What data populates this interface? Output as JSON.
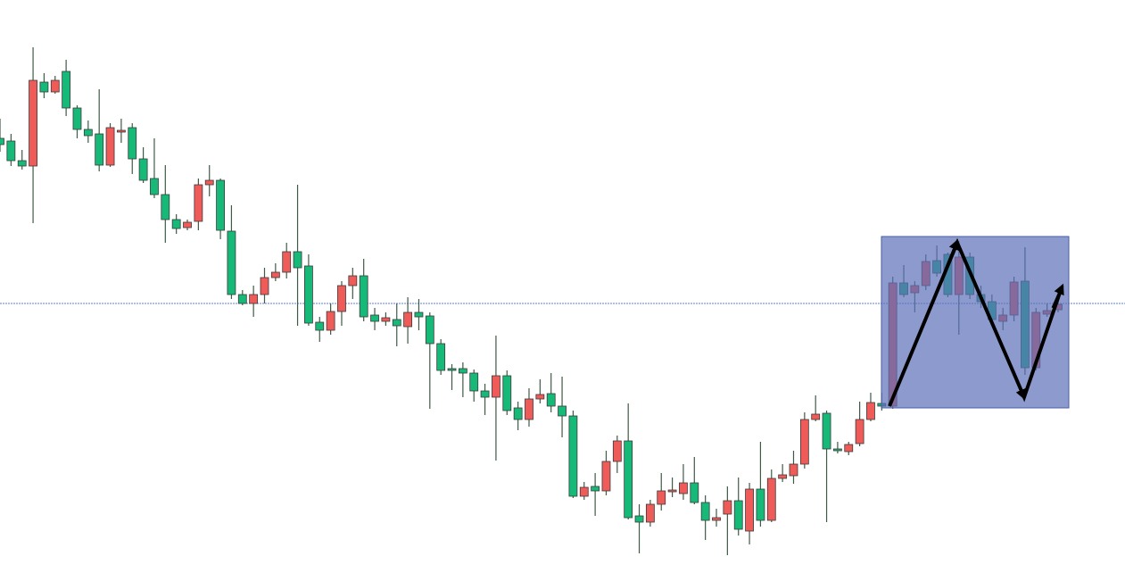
{
  "chart_data": {
    "type": "candlestick",
    "ylim": [
      0,
      642
    ],
    "up_color": "#ee5b58",
    "down_color": "#17b978",
    "wick_color": "#3f5a46",
    "hline": {
      "value": 302,
      "color": "#5b7fe0"
    },
    "open": [
      487,
      484,
      462,
      456,
      550,
      539,
      562,
      521,
      497,
      492,
      457,
      494,
      499,
      464,
      442,
      424,
      396,
      387,
      394,
      435,
      440,
      383,
      312,
      302,
      312,
      331,
      337,
      360,
      344,
      281,
      272,
      293,
      322,
      333,
      289,
      282,
      284,
      276,
      292,
      288,
      257,
      229,
      229,
      224,
      204,
      197,
      221,
      185,
      172,
      195,
      201,
      187,
      176,
      86,
      97,
      92,
      125,
      148,
      64,
      57,
      77,
      91,
      89,
      101,
      79,
      59,
      66,
      81,
      47,
      94,
      59,
      106,
      109,
      122,
      172,
      179,
      139,
      136,
      145,
      172,
      190,
      187,
      325,
      314,
      322,
      350,
      357,
      312,
      354,
      312,
      304,
      282,
      289,
      327,
      230,
      290,
      295
    ],
    "high": [
      509,
      492,
      474,
      589,
      560,
      557,
      575,
      524,
      507,
      542,
      504,
      509,
      504,
      477,
      487,
      457,
      402,
      396,
      442,
      457,
      442,
      412,
      317,
      322,
      342,
      347,
      370,
      435,
      357,
      287,
      302,
      327,
      342,
      352,
      297,
      292,
      302,
      309,
      307,
      292,
      262,
      234,
      236,
      228,
      212,
      266,
      227,
      192,
      207,
      217,
      224,
      220,
      182,
      102,
      112,
      137,
      154,
      190,
      77,
      82,
      112,
      107,
      122,
      130,
      87,
      72,
      97,
      107,
      101,
      147,
      116,
      122,
      137,
      180,
      199,
      182,
      147,
      147,
      192,
      202,
      202,
      332,
      345,
      327,
      357,
      367,
      359,
      372,
      359,
      322,
      312,
      297,
      332,
      365,
      297,
      302,
      307
    ],
    "low": [
      472,
      456,
      452,
      392,
      532,
      537,
      512,
      487,
      482,
      450,
      455,
      482,
      447,
      437,
      420,
      370,
      380,
      384,
      384,
      422,
      374,
      307,
      300,
      287,
      302,
      327,
      330,
      277,
      277,
      259,
      267,
      277,
      307,
      282,
      272,
      277,
      254,
      257,
      272,
      184,
      222,
      205,
      197,
      192,
      177,
      126,
      177,
      160,
      164,
      190,
      180,
      152,
      84,
      82,
      64,
      87,
      112,
      60,
      22,
      52,
      70,
      85,
      82,
      77,
      37,
      52,
      20,
      42,
      32,
      52,
      57,
      102,
      100,
      117,
      170,
      57,
      134,
      132,
      142,
      170,
      182,
      184,
      309,
      292,
      317,
      332,
      309,
      267,
      307,
      297,
      277,
      272,
      282,
      222,
      227,
      287,
      292
    ],
    "close": [
      480,
      462,
      456,
      552,
      539,
      552,
      521,
      497,
      490,
      457,
      499,
      496,
      464,
      440,
      424,
      396,
      386,
      393,
      435,
      440,
      384,
      312,
      302,
      312,
      331,
      337,
      360,
      342,
      280,
      272,
      293,
      322,
      333,
      287,
      282,
      286,
      277,
      292,
      287,
      257,
      227,
      227,
      224,
      204,
      197,
      221,
      182,
      172,
      195,
      200,
      187,
      176,
      86,
      96,
      92,
      125,
      148,
      62,
      57,
      77,
      92,
      93,
      101,
      79,
      59,
      62,
      81,
      49,
      94,
      59,
      106,
      110,
      122,
      172,
      178,
      139,
      137,
      144,
      172,
      191,
      187,
      325,
      312,
      322,
      349,
      336,
      312,
      354,
      312,
      304,
      284,
      289,
      326,
      230,
      292,
      294,
      301
    ]
  }
}
